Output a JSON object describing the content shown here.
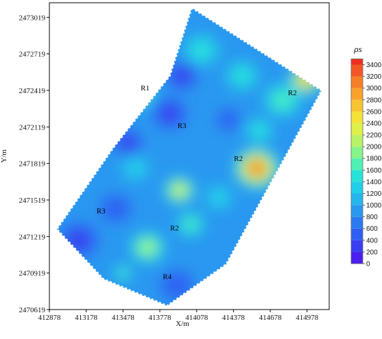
{
  "chart_data": {
    "type": "heatmap",
    "title": "",
    "xlabel": "X/m",
    "ylabel": "Y/m",
    "x_ticks": [
      412878,
      413178,
      413478,
      413778,
      414078,
      414378,
      414678,
      414978
    ],
    "y_ticks": [
      2470619,
      2470919,
      2471219,
      2471519,
      2471819,
      2472119,
      2472419,
      2472719,
      2473019
    ],
    "xlim": [
      412878,
      415158
    ],
    "ylim": [
      2470619,
      2473139
    ],
    "colorbar": {
      "label": "ρs",
      "ticks": [
        0,
        200,
        400,
        600,
        800,
        1000,
        1200,
        1400,
        1600,
        1800,
        2000,
        2200,
        2400,
        2600,
        2800,
        3000,
        3200,
        3400
      ],
      "range": [
        0,
        3500
      ],
      "colors": [
        "#4b1ff0",
        "#3a3ef0",
        "#2f5ff2",
        "#2a7bf2",
        "#2a98f0",
        "#27b5ee",
        "#22cfe8",
        "#27e2d8",
        "#4ff0b4",
        "#86f48a",
        "#b8f268",
        "#dff04a",
        "#f4e23a",
        "#f8c431",
        "#f8a22c",
        "#f67f27",
        "#f25624",
        "#ee2e20"
      ]
    },
    "survey_outline": [
      [
        414038,
        2473099
      ],
      [
        415098,
        2472419
      ],
      [
        414318,
        2470989
      ],
      [
        413838,
        2470649
      ],
      [
        413318,
        2470869
      ],
      [
        412938,
        2471279
      ],
      [
        413398,
        2471949
      ],
      [
        413858,
        2472539
      ]
    ],
    "regions": [
      {
        "label": "R1",
        "x": 413658,
        "y": 2472419
      },
      {
        "label": "R2",
        "x": 414858,
        "y": 2472379
      },
      {
        "label": "R3",
        "x": 413958,
        "y": 2472109
      },
      {
        "label": "R2",
        "x": 414418,
        "y": 2471839
      },
      {
        "label": "R3",
        "x": 413298,
        "y": 2471409
      },
      {
        "label": "R2",
        "x": 413898,
        "y": 2471269
      },
      {
        "label": "R4",
        "x": 413838,
        "y": 2470869
      }
    ],
    "hotspots": [
      {
        "x": 414568,
        "y": 2471779,
        "value": 3400,
        "r": 190
      },
      {
        "x": 414968,
        "y": 2472509,
        "value": 3000,
        "r": 140
      },
      {
        "x": 414778,
        "y": 2472339,
        "value": 1700,
        "r": 160
      },
      {
        "x": 413938,
        "y": 2471599,
        "value": 2500,
        "r": 130
      },
      {
        "x": 413678,
        "y": 2471129,
        "value": 2000,
        "r": 150
      },
      {
        "x": 413598,
        "y": 2472399,
        "value": 2000,
        "r": 140
      },
      {
        "x": 414028,
        "y": 2471319,
        "value": 1600,
        "r": 120
      },
      {
        "x": 413478,
        "y": 2470919,
        "value": 1600,
        "r": 80
      },
      {
        "x": 414118,
        "y": 2472749,
        "value": 1500,
        "r": 150
      },
      {
        "x": 414448,
        "y": 2472539,
        "value": 1500,
        "r": 140
      },
      {
        "x": 414588,
        "y": 2472089,
        "value": 1400,
        "r": 120
      },
      {
        "x": 413578,
        "y": 2471779,
        "value": 1200,
        "r": 120
      },
      {
        "x": 414258,
        "y": 2471539,
        "value": 1300,
        "r": 120
      },
      {
        "x": 413858,
        "y": 2472229,
        "value": 300,
        "r": 150
      },
      {
        "x": 413958,
        "y": 2472539,
        "value": 250,
        "r": 140
      },
      {
        "x": 413518,
        "y": 2471989,
        "value": 350,
        "r": 130
      },
      {
        "x": 413118,
        "y": 2471189,
        "value": 200,
        "r": 170
      },
      {
        "x": 413418,
        "y": 2471449,
        "value": 400,
        "r": 140
      },
      {
        "x": 414338,
        "y": 2472179,
        "value": 500,
        "r": 110
      },
      {
        "x": 413918,
        "y": 2470819,
        "value": 450,
        "r": 150
      }
    ],
    "base_value": 850
  }
}
